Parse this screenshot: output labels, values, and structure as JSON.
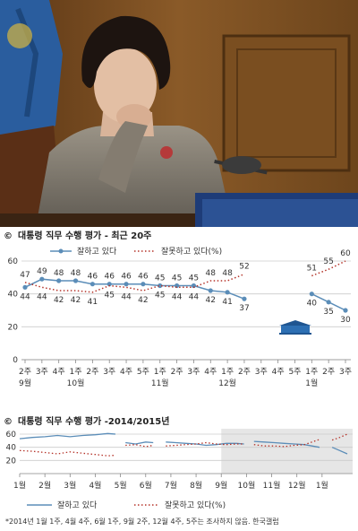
{
  "photo": {
    "flag_color": "#2a5d9e",
    "wall_color": "#7a4f22",
    "jacket_color": "#8a8378",
    "monitor_color": "#1e3c78"
  },
  "charts": {
    "weekly": {
      "title": "대통령 직무 수행 평가 - 최근 20주",
      "legend": [
        "잘하고 있다",
        "잘못하고 있다(%)"
      ]
    },
    "yearly": {
      "title": "대통령 직무 수행 평가 -2014/2015년",
      "legend": [
        "잘하고 있다",
        "잘못하고 있다(%)"
      ]
    }
  },
  "footnote": "*2014년 1월 1주, 4월 4주, 6월 1주, 9월 2주, 12월 4주, 5주는 조사하지 않음. 한국갤럽",
  "colors": {
    "approve": "#5b8db8",
    "disapprove": "#b5342a",
    "grid": "#cccccc",
    "shade": "#e6e6e6",
    "blue_house": "#2d6fb3"
  },
  "chart_data": [
    {
      "type": "line",
      "title": "대통령 직무 수행 평가 - 최근 20주",
      "xlabel": "",
      "ylabel": "",
      "ylim": [
        0,
        60
      ],
      "yticks": [
        0,
        20,
        40,
        60
      ],
      "categories": [
        "2주",
        "3주",
        "4주",
        "1주",
        "2주",
        "3주",
        "4주",
        "5주",
        "1주",
        "2주",
        "3주",
        "4주",
        "1주",
        "2주",
        "3주",
        "4주",
        "5주",
        "1주",
        "2주",
        "3주"
      ],
      "month_labels": [
        {
          "label": "9월",
          "index": 0
        },
        {
          "label": "10월",
          "index": 3
        },
        {
          "label": "11월",
          "index": 8
        },
        {
          "label": "12월",
          "index": 12
        },
        {
          "label": "1월",
          "index": 17
        }
      ],
      "series": [
        {
          "name": "잘하고 있다",
          "style": "solid",
          "color": "#5b8db8",
          "values": [
            44,
            49,
            48,
            48,
            46,
            46,
            46,
            46,
            45,
            45,
            45,
            42,
            41,
            37,
            null,
            null,
            null,
            40,
            35,
            30
          ]
        },
        {
          "name": "잘못하고 있다(%)",
          "style": "dotted",
          "color": "#b5342a",
          "values": [
            47,
            44,
            42,
            42,
            41,
            45,
            44,
            42,
            45,
            44,
            44,
            48,
            48,
            52,
            null,
            null,
            null,
            51,
            55,
            60
          ]
        }
      ],
      "grid": true,
      "legend_position": "top-right"
    },
    {
      "type": "line",
      "title": "대통령 직무 수행 평가 -2014/2015년",
      "ylim": [
        0,
        60
      ],
      "yticks": [
        20,
        40,
        60
      ],
      "categories": [
        "1월",
        "2월",
        "3월",
        "4월",
        "5월",
        "6월",
        "7월",
        "8월",
        "9월",
        "10월",
        "11월",
        "12월",
        "1월"
      ],
      "highlight_range": [
        "9월",
        "1월"
      ],
      "series": [
        {
          "name": "잘하고 있다",
          "style": "solid",
          "color": "#5b8db8",
          "segments": [
            [
              [
                0.0,
                53
              ],
              [
                0.5,
                55
              ],
              [
                1.0,
                56
              ],
              [
                1.5,
                58
              ],
              [
                2.0,
                56
              ],
              [
                2.5,
                58
              ],
              [
                3.0,
                59
              ],
              [
                3.5,
                61
              ],
              [
                3.8,
                60
              ]
            ],
            [
              [
                4.2,
                47
              ],
              [
                4.6,
                45
              ],
              [
                5.0,
                48
              ],
              [
                5.3,
                47
              ]
            ],
            [
              [
                5.8,
                48
              ],
              [
                6.2,
                47
              ],
              [
                6.6,
                46
              ],
              [
                7.0,
                45
              ],
              [
                7.4,
                43
              ],
              [
                7.8,
                44
              ],
              [
                8.2,
                46
              ],
              [
                8.6,
                46
              ],
              [
                8.9,
                45
              ]
            ],
            [
              [
                9.3,
                49
              ],
              [
                9.7,
                48
              ],
              [
                10.1,
                47
              ],
              [
                10.5,
                46
              ],
              [
                10.9,
                45
              ],
              [
                11.3,
                44
              ],
              [
                11.6,
                42
              ],
              [
                11.9,
                40
              ]
            ],
            [
              [
                12.4,
                40
              ],
              [
                12.7,
                35
              ],
              [
                13.0,
                30
              ]
            ]
          ]
        },
        {
          "name": "잘못하고 있다(%)",
          "style": "dotted",
          "color": "#b5342a",
          "segments": [
            [
              [
                0.0,
                35
              ],
              [
                0.5,
                34
              ],
              [
                1.0,
                32
              ],
              [
                1.5,
                30
              ],
              [
                2.0,
                33
              ],
              [
                2.5,
                31
              ],
              [
                3.0,
                29
              ],
              [
                3.5,
                27
              ],
              [
                3.8,
                28
              ]
            ],
            [
              [
                4.2,
                43
              ],
              [
                4.6,
                44
              ],
              [
                5.0,
                41
              ],
              [
                5.3,
                43
              ]
            ],
            [
              [
                5.8,
                42
              ],
              [
                6.2,
                43
              ],
              [
                6.6,
                44
              ],
              [
                7.0,
                45
              ],
              [
                7.4,
                47
              ],
              [
                7.8,
                45
              ],
              [
                8.2,
                44
              ],
              [
                8.6,
                45
              ],
              [
                8.9,
                45
              ]
            ],
            [
              [
                9.3,
                44
              ],
              [
                9.7,
                42
              ],
              [
                10.1,
                42
              ],
              [
                10.5,
                41
              ],
              [
                10.9,
                43
              ],
              [
                11.3,
                44
              ],
              [
                11.6,
                48
              ],
              [
                11.9,
                52
              ]
            ],
            [
              [
                12.4,
                51
              ],
              [
                12.7,
                55
              ],
              [
                13.0,
                60
              ]
            ]
          ]
        }
      ],
      "grid": true,
      "legend_position": "bottom-center"
    }
  ]
}
